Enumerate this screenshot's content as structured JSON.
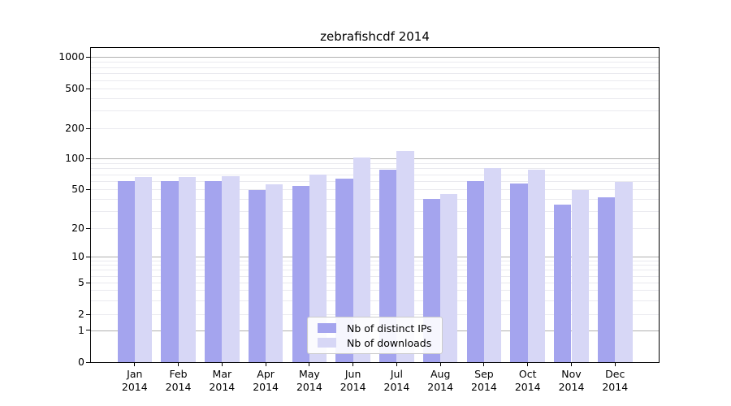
{
  "title": "zebrafishcdf 2014",
  "chart_data": {
    "type": "bar",
    "title": "zebrafishcdf 2014",
    "categories": [
      "Jan 2014",
      "Feb 2014",
      "Mar 2014",
      "Apr 2014",
      "May 2014",
      "Jun 2014",
      "Jul 2014",
      "Aug 2014",
      "Sep 2014",
      "Oct 2014",
      "Nov 2014",
      "Dec 2014"
    ],
    "series": [
      {
        "name": "Nb of distinct IPs",
        "color": "#a4a4ee",
        "values": [
          60,
          60,
          60,
          49,
          54,
          63,
          77,
          40,
          60,
          57,
          35,
          41
        ]
      },
      {
        "name": "Nb of downloads",
        "color": "#d7d7f6",
        "values": [
          66,
          66,
          67,
          56,
          70,
          102,
          118,
          45,
          80,
          77,
          49,
          59
        ]
      }
    ],
    "xlabel": "",
    "ylabel": "",
    "y_ticks": [
      0,
      1,
      2,
      5,
      10,
      20,
      50,
      100,
      200,
      500,
      1000
    ],
    "yscale": "log-like with 1-2-5 ticks and 0 baseline",
    "ylim": [
      0,
      1250
    ],
    "grid": "major gray lines at 1/10/100/1000, faint minor lines at 2-9 multiples",
    "legend_position": "lower center",
    "colors": {
      "bar_distinct_ips": "#a4a4ee",
      "bar_downloads": "#d7d7f6",
      "grid_major": "#b0b0b0",
      "grid_minor": "#eaeaef",
      "axis": "#000000",
      "legend_border": "#cccccc",
      "background": "#ffffff"
    }
  }
}
